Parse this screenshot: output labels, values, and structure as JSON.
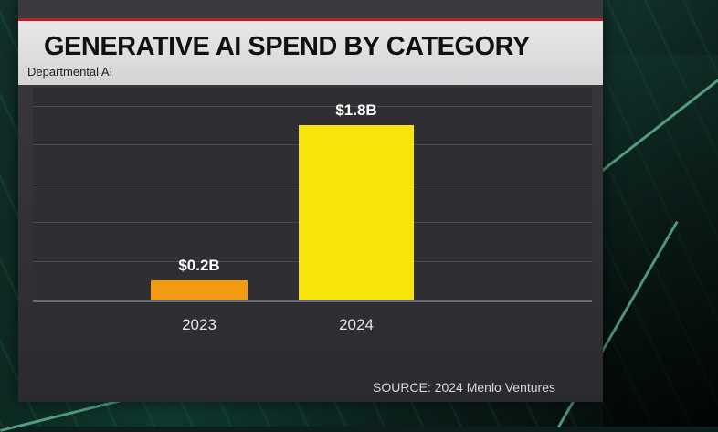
{
  "chart_data": {
    "type": "bar",
    "title": "GENERATIVE AI SPEND BY CATEGORY",
    "subtitle": "Departmental AI",
    "categories": [
      "2023",
      "2024"
    ],
    "values": [
      0.2,
      1.8
    ],
    "value_labels": [
      "$0.2B",
      "$1.8B"
    ],
    "ylim": [
      0,
      2.0
    ],
    "grid": true,
    "source": "SOURCE: 2024 Menlo Ventures",
    "colors": {
      "bars": [
        "#f29a12",
        "#f7e40a"
      ],
      "panel": "#323236",
      "header": "#dedede",
      "accent": "#c21a2a"
    }
  }
}
